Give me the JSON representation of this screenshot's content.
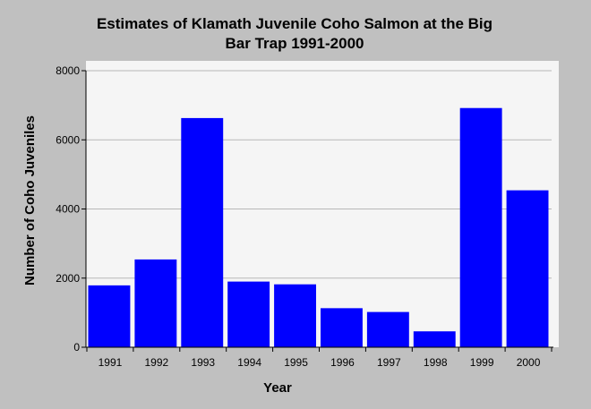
{
  "chart_data": {
    "type": "bar",
    "title_lines": [
      "Estimates of Klamath Juvenile Coho Salmon at the Big",
      "Bar Trap 1991-2000"
    ],
    "xlabel": "Year",
    "ylabel": "Number of Coho Juveniles",
    "categories": [
      "1991",
      "1992",
      "1993",
      "1994",
      "1995",
      "1996",
      "1997",
      "1998",
      "1999",
      "2000"
    ],
    "values": [
      1790,
      2540,
      6630,
      1900,
      1820,
      1130,
      1020,
      460,
      6920,
      4540
    ],
    "ylim": [
      0,
      8000
    ],
    "yticks": [
      0,
      2000,
      4000,
      6000,
      8000
    ],
    "grid": true,
    "legend": "none",
    "bar_color": "#0000ff",
    "plot_background": "#f5f5f5",
    "page_background": "#c0c0c0"
  }
}
